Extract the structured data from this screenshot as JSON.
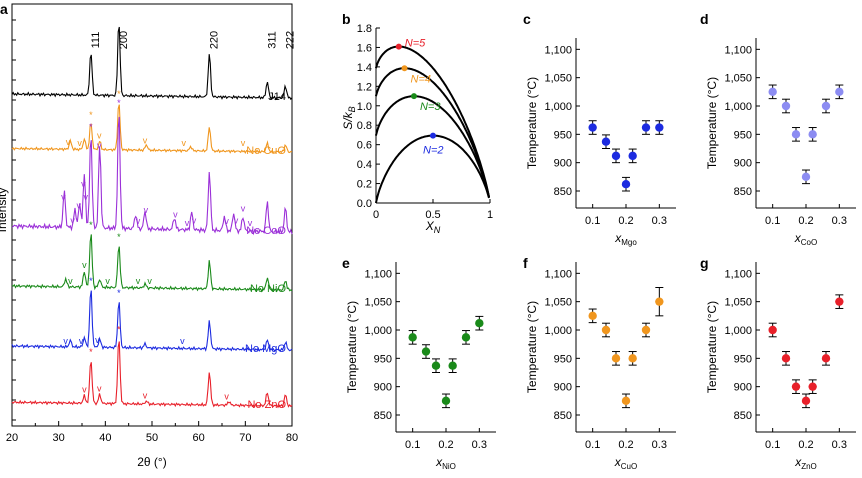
{
  "panel_letters": {
    "a": "a",
    "b": "b",
    "c": "c",
    "d": "d",
    "e": "e",
    "f": "f",
    "g": "g"
  },
  "chart_data": [
    {
      "panel": "a",
      "type": "line",
      "xlabel": "2θ (°)",
      "ylabel": "Intensity",
      "xlim": [
        20,
        80
      ],
      "x_ticks": [
        20,
        30,
        40,
        50,
        60,
        70,
        80
      ],
      "peak_labels": [
        {
          "label": "111",
          "x": 36.9
        },
        {
          "label": "200",
          "x": 42.9
        },
        {
          "label": "220",
          "x": 62.3
        },
        {
          "label": "311",
          "x": 74.7
        },
        {
          "label": "222",
          "x": 78.6
        }
      ],
      "series": [
        {
          "name": "J14",
          "color": "#000000",
          "peaks": [
            [
              36.9,
              0.55
            ],
            [
              42.9,
              0.95
            ],
            [
              62.3,
              0.55
            ],
            [
              74.7,
              0.2
            ],
            [
              78.6,
              0.15
            ]
          ],
          "markers": []
        },
        {
          "name": "No CuO",
          "color": "#f0961e",
          "peaks": [
            [
              32.5,
              0.12
            ],
            [
              35.5,
              0.15
            ],
            [
              36.9,
              0.4
            ],
            [
              38.8,
              0.12
            ],
            [
              42.9,
              0.7
            ],
            [
              48.8,
              0.08
            ],
            [
              58.3,
              0.06
            ],
            [
              62.3,
              0.35
            ],
            [
              74.7,
              0.12
            ],
            [
              78.6,
              0.1
            ]
          ],
          "markers": [
            {
              "x": 32,
              "symbol": "v"
            },
            {
              "x": 34.5,
              "symbol": "v"
            },
            {
              "x": 36.9,
              "symbol": "*"
            },
            {
              "x": 38.7,
              "symbol": "v"
            },
            {
              "x": 42.9,
              "symbol": "*"
            },
            {
              "x": 48.5,
              "symbol": "v"
            },
            {
              "x": 56.8,
              "symbol": "v"
            },
            {
              "x": 69.5,
              "symbol": "v"
            }
          ]
        },
        {
          "name": "No CoO",
          "color": "#9b30d8",
          "peaks": [
            [
              31.2,
              0.3
            ],
            [
              33.5,
              0.15
            ],
            [
              34.5,
              0.2
            ],
            [
              35.5,
              0.45
            ],
            [
              36.9,
              0.8
            ],
            [
              38.8,
              0.7
            ],
            [
              42.9,
              1.0
            ],
            [
              46.5,
              0.12
            ],
            [
              48.5,
              0.15
            ],
            [
              54.8,
              0.1
            ],
            [
              58.5,
              0.15
            ],
            [
              62.3,
              0.5
            ],
            [
              65.5,
              0.12
            ],
            [
              67.5,
              0.15
            ],
            [
              69.5,
              0.12
            ],
            [
              74.7,
              0.25
            ],
            [
              78.6,
              0.2
            ]
          ],
          "markers": [
            {
              "x": 31,
              "symbol": "v"
            },
            {
              "x": 33,
              "symbol": "v"
            },
            {
              "x": 34.3,
              "symbol": "v"
            },
            {
              "x": 35.3,
              "symbol": "v"
            },
            {
              "x": 35.8,
              "symbol": "v"
            },
            {
              "x": 36.9,
              "symbol": "*"
            },
            {
              "x": 38.7,
              "symbol": "v"
            },
            {
              "x": 42.9,
              "symbol": "*"
            },
            {
              "x": 47,
              "symbol": "v"
            },
            {
              "x": 48.7,
              "symbol": "v"
            },
            {
              "x": 55,
              "symbol": "v"
            },
            {
              "x": 57.5,
              "symbol": "v"
            },
            {
              "x": 59,
              "symbol": "v"
            },
            {
              "x": 66,
              "symbol": "v"
            },
            {
              "x": 68,
              "symbol": "v"
            },
            {
              "x": 69.5,
              "symbol": "v"
            },
            {
              "x": 71,
              "symbol": "v"
            }
          ]
        },
        {
          "name": "No NiO",
          "color": "#1a8a1a",
          "peaks": [
            [
              31.5,
              0.1
            ],
            [
              35.5,
              0.2
            ],
            [
              36.9,
              0.7
            ],
            [
              38.8,
              0.1
            ],
            [
              42.9,
              0.55
            ],
            [
              48.5,
              0.05
            ],
            [
              62.3,
              0.35
            ],
            [
              74.7,
              0.15
            ],
            [
              78.6,
              0.12
            ]
          ],
          "markers": [
            {
              "x": 32.5,
              "symbol": "v"
            },
            {
              "x": 35.5,
              "symbol": "v"
            },
            {
              "x": 36.9,
              "symbol": "*"
            },
            {
              "x": 40.5,
              "symbol": "v"
            },
            {
              "x": 42.9,
              "symbol": "*"
            },
            {
              "x": 47,
              "symbol": "v"
            },
            {
              "x": 49.5,
              "symbol": "v"
            }
          ]
        },
        {
          "name": "No MgO",
          "color": "#1c2be0",
          "peaks": [
            [
              32.5,
              0.08
            ],
            [
              35.5,
              0.12
            ],
            [
              36.9,
              0.75
            ],
            [
              38.8,
              0.1
            ],
            [
              42.9,
              0.6
            ],
            [
              48.5,
              0.05
            ],
            [
              62.3,
              0.35
            ],
            [
              74.7,
              0.12
            ],
            [
              78.6,
              0.1
            ]
          ],
          "markers": [
            {
              "x": 31.5,
              "symbol": "v"
            },
            {
              "x": 34.8,
              "symbol": "v"
            },
            {
              "x": 36.9,
              "symbol": "*"
            },
            {
              "x": 38.3,
              "symbol": "v"
            },
            {
              "x": 42.9,
              "symbol": "*"
            },
            {
              "x": 56.5,
              "symbol": "v"
            }
          ]
        },
        {
          "name": "No ZnO",
          "color": "#e8202a",
          "peaks": [
            [
              35.5,
              0.1
            ],
            [
              36.9,
              0.6
            ],
            [
              38.8,
              0.12
            ],
            [
              42.9,
              0.9
            ],
            [
              48.8,
              0.04
            ],
            [
              62.3,
              0.45
            ],
            [
              66.5,
              0.05
            ],
            [
              74.7,
              0.18
            ],
            [
              78.6,
              0.15
            ]
          ],
          "markers": [
            {
              "x": 35.5,
              "symbol": "v"
            },
            {
              "x": 36.9,
              "symbol": "*"
            },
            {
              "x": 38.7,
              "symbol": "v"
            },
            {
              "x": 42.9,
              "symbol": "*"
            },
            {
              "x": 48.5,
              "symbol": "v"
            },
            {
              "x": 66,
              "symbol": "v"
            }
          ]
        }
      ]
    },
    {
      "panel": "b",
      "type": "line",
      "xlabel": "X_N",
      "ylabel": "S/k_B",
      "xlim": [
        0,
        1
      ],
      "ylim": [
        0,
        1.8
      ],
      "x_ticks": [
        0,
        0.5,
        1
      ],
      "y_ticks": [
        0,
        0.2,
        0.4,
        0.6,
        0.8,
        1.0,
        1.2,
        1.4,
        1.6,
        1.8
      ],
      "series": [
        {
          "name": "N=5",
          "color": "#e8202a",
          "max_x": 0.2,
          "max_y": 1.609
        },
        {
          "name": "N=4",
          "color": "#f0961e",
          "max_x": 0.25,
          "max_y": 1.386
        },
        {
          "name": "N=3",
          "color": "#1a8a1a",
          "max_x": 0.333,
          "max_y": 1.099
        },
        {
          "name": "N=2",
          "color": "#1c2be0",
          "max_x": 0.5,
          "max_y": 0.693
        }
      ]
    },
    {
      "panel": "c",
      "type": "scatter",
      "color": "#1c2be0",
      "xlabel_main": "x",
      "xlabel_sub": "Mgo",
      "ylabel": "Temperature (°C)",
      "xlim": [
        0.05,
        0.35
      ],
      "ylim": [
        820,
        1120
      ],
      "x_ticks": [
        0.1,
        0.2,
        0.3
      ],
      "y_ticks": [
        850,
        900,
        950,
        1000,
        1050,
        1100
      ],
      "x": [
        0.1,
        0.14,
        0.17,
        0.2,
        0.22,
        0.26,
        0.3
      ],
      "y": [
        962,
        937,
        912,
        862,
        912,
        962,
        962
      ],
      "err": [
        12,
        12,
        12,
        12,
        12,
        12,
        12
      ]
    },
    {
      "panel": "d",
      "type": "scatter",
      "color": "#8c8cf2",
      "xlabel_main": "x",
      "xlabel_sub": "CoO",
      "ylabel": "Temperature (°C)",
      "xlim": [
        0.05,
        0.35
      ],
      "ylim": [
        820,
        1120
      ],
      "x_ticks": [
        0.1,
        0.2,
        0.3
      ],
      "y_ticks": [
        850,
        900,
        950,
        1000,
        1050,
        1100
      ],
      "x": [
        0.1,
        0.14,
        0.17,
        0.2,
        0.22,
        0.26,
        0.3
      ],
      "y": [
        1025,
        1000,
        950,
        875,
        950,
        1000,
        1025
      ],
      "err": [
        12,
        12,
        12,
        12,
        12,
        12,
        12
      ]
    },
    {
      "panel": "e",
      "type": "scatter",
      "color": "#1a8a1a",
      "xlabel_main": "x",
      "xlabel_sub": "NiO",
      "ylabel": "Temperature (°C)",
      "xlim": [
        0.05,
        0.35
      ],
      "ylim": [
        820,
        1120
      ],
      "x_ticks": [
        0.1,
        0.2,
        0.3
      ],
      "y_ticks": [
        850,
        900,
        950,
        1000,
        1050,
        1100
      ],
      "x": [
        0.1,
        0.14,
        0.17,
        0.2,
        0.22,
        0.26,
        0.3
      ],
      "y": [
        987,
        962,
        937,
        875,
        937,
        987,
        1012
      ],
      "err": [
        12,
        12,
        12,
        12,
        12,
        12,
        12
      ]
    },
    {
      "panel": "f",
      "type": "scatter",
      "color": "#f0961e",
      "xlabel_main": "x",
      "xlabel_sub": "CuO",
      "ylabel": "Temperature (°C)",
      "xlim": [
        0.05,
        0.35
      ],
      "ylim": [
        820,
        1120
      ],
      "x_ticks": [
        0.1,
        0.2,
        0.3
      ],
      "y_ticks": [
        850,
        900,
        950,
        1000,
        1050,
        1100
      ],
      "x": [
        0.1,
        0.14,
        0.17,
        0.2,
        0.22,
        0.26,
        0.3
      ],
      "y": [
        1025,
        1000,
        950,
        875,
        950,
        1000,
        1050
      ],
      "err": [
        12,
        12,
        12,
        12,
        12,
        12,
        25
      ]
    },
    {
      "panel": "g",
      "type": "scatter",
      "color": "#e8202a",
      "xlabel_main": "x",
      "xlabel_sub": "ZnO",
      "ylabel": "Temperature (°C)",
      "xlim": [
        0.05,
        0.35
      ],
      "ylim": [
        820,
        1120
      ],
      "x_ticks": [
        0.1,
        0.2,
        0.3
      ],
      "y_ticks": [
        850,
        900,
        950,
        1000,
        1050,
        1100
      ],
      "x": [
        0.1,
        0.14,
        0.17,
        0.2,
        0.22,
        0.26,
        0.3
      ],
      "y": [
        1000,
        950,
        900,
        875,
        900,
        950,
        1050
      ],
      "err": [
        12,
        12,
        12,
        12,
        12,
        12,
        12
      ]
    }
  ]
}
